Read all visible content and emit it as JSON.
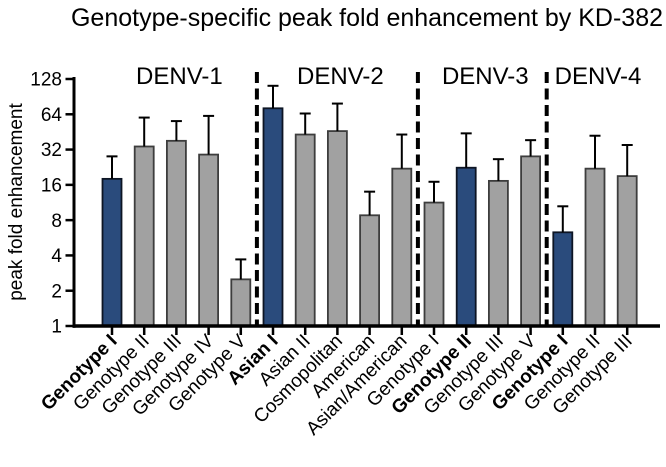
{
  "figure": {
    "title": "Genotype-specific peak fold enhancement by KD-382",
    "ylabel": "peak fold enhancement"
  },
  "chart_data": {
    "type": "bar",
    "title": "Genotype-specific peak fold enhancement by KD-382",
    "xlabel": "",
    "ylabel": "peak fold enhancement",
    "yscale": "log2",
    "ylim": [
      1,
      128
    ],
    "yticks": [
      1,
      2,
      4,
      8,
      16,
      32,
      64,
      128
    ],
    "grid": false,
    "legend": "none",
    "error_bars": "upper only, with caps",
    "group_separator_style": "vertical dashed line",
    "colors": {
      "highlight_fill": "#2a4b7c",
      "highlight_border": "#0d1524",
      "bar_fill": "#a1a1a1",
      "bar_border": "#3d3d3d",
      "axis": "#000000"
    },
    "groups": [
      {
        "label": "DENV-1",
        "bars": [
          {
            "label": "Genotype I",
            "value": 18,
            "error_high": 28,
            "highlight": true
          },
          {
            "label": "Genotype II",
            "value": 34,
            "error_high": 60,
            "highlight": false
          },
          {
            "label": "Genotype III",
            "value": 38,
            "error_high": 56,
            "highlight": false
          },
          {
            "label": "Genotype IV",
            "value": 29,
            "error_high": 62,
            "highlight": false
          },
          {
            "label": "Genotype V",
            "value": 2.5,
            "error_high": 3.7,
            "highlight": false
          }
        ]
      },
      {
        "label": "DENV-2",
        "bars": [
          {
            "label": "Asian I",
            "value": 72,
            "error_high": 112,
            "highlight": true
          },
          {
            "label": "Asian II",
            "value": 43,
            "error_high": 65,
            "highlight": false
          },
          {
            "label": "Cosmopolitan",
            "value": 46,
            "error_high": 79,
            "highlight": false
          },
          {
            "label": "American",
            "value": 8.8,
            "error_high": 14,
            "highlight": false
          },
          {
            "label": "Asian/American",
            "value": 22,
            "error_high": 43,
            "highlight": false
          }
        ]
      },
      {
        "label": "DENV-3",
        "bars": [
          {
            "label": "Genotype I",
            "value": 11.3,
            "error_high": 17,
            "highlight": false
          },
          {
            "label": "Genotype II",
            "value": 22.4,
            "error_high": 44,
            "highlight": true
          },
          {
            "label": "Genotype III",
            "value": 17.3,
            "error_high": 26.5,
            "highlight": false
          },
          {
            "label": "Genotype V",
            "value": 28,
            "error_high": 38.5,
            "highlight": false
          }
        ]
      },
      {
        "label": "DENV-4",
        "bars": [
          {
            "label": "Genotype I",
            "value": 6.3,
            "error_high": 10.5,
            "highlight": true
          },
          {
            "label": "Genotype II",
            "value": 22,
            "error_high": 42,
            "highlight": false
          },
          {
            "label": "Genotype III",
            "value": 19,
            "error_high": 35,
            "highlight": false
          }
        ]
      }
    ]
  }
}
